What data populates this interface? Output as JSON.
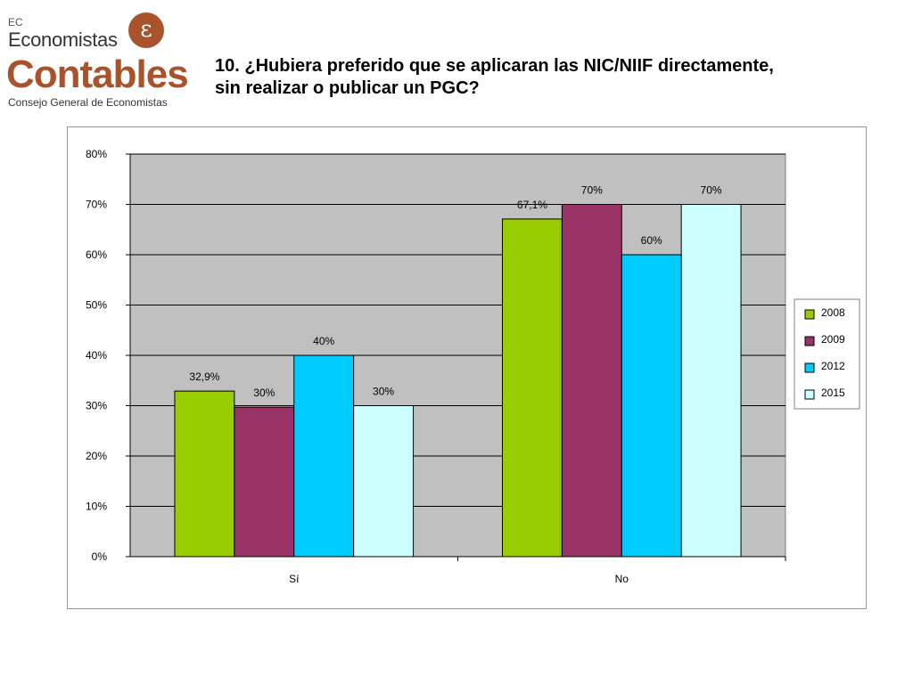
{
  "logo": {
    "ec": "EC",
    "economistas": "Economistas",
    "contables": "Contables",
    "consejo": "Consejo General de Economistas",
    "badge_glyph": "ε"
  },
  "header": {
    "title_line1": "10. ¿Hubiera preferido que se aplicaran las NIC/NIIF directamente,",
    "title_line2": "sin realizar o publicar un PGC?"
  },
  "chart_data": {
    "type": "bar",
    "categories": [
      "Sí",
      "No"
    ],
    "series": [
      {
        "name": "2008",
        "color": "#99cc00",
        "values": [
          32.9,
          67.1
        ],
        "labels": [
          "32,9%",
          "67,1%"
        ]
      },
      {
        "name": "2009",
        "color": "#993366",
        "values": [
          29.7,
          70
        ],
        "labels": [
          "30%",
          "70%"
        ]
      },
      {
        "name": "2012",
        "color": "#00ccff",
        "values": [
          40,
          60
        ],
        "labels": [
          "40%",
          "60%"
        ]
      },
      {
        "name": "2015",
        "color": "#ccffff",
        "values": [
          30,
          70
        ],
        "labels": [
          "30%",
          "70%"
        ]
      }
    ],
    "yticks": [
      "0%",
      "10%",
      "20%",
      "30%",
      "40%",
      "50%",
      "60%",
      "70%",
      "80%"
    ],
    "ylim": [
      0,
      80
    ],
    "xlabel": "",
    "ylabel": "",
    "grid": true,
    "legend": "right",
    "plot_background": "#c0c0c0"
  }
}
